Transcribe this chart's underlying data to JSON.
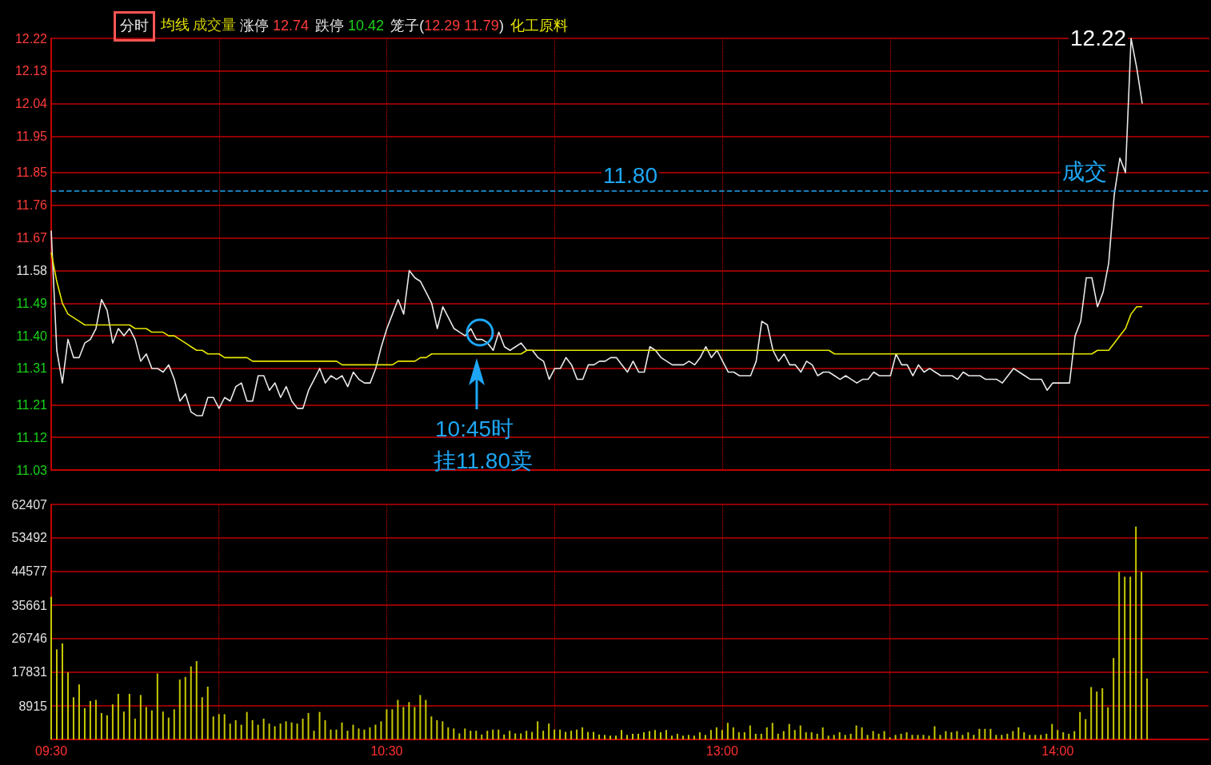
{
  "chart_data": [
    {
      "type": "line",
      "title": "分时",
      "legend": "top left",
      "grid": true,
      "tick_labels": "y",
      "categories": [
        null,
        null,
        null,
        null,
        null,
        null,
        null,
        null,
        null,
        null,
        null,
        null,
        null,
        null,
        null,
        null,
        null,
        null,
        null,
        null,
        null,
        null,
        null,
        null,
        null,
        null,
        null,
        null,
        null,
        null,
        null,
        null,
        null,
        null,
        null,
        null,
        null,
        null,
        null,
        null,
        null,
        null,
        null,
        null,
        null,
        null,
        null,
        null,
        null,
        null,
        null,
        null,
        null,
        null,
        null,
        null,
        null,
        null,
        null,
        null,
        null,
        null,
        null,
        null,
        null,
        null,
        null,
        null,
        null,
        null,
        null,
        null,
        null,
        null,
        null,
        null,
        null,
        null,
        null,
        null,
        null,
        null,
        null,
        null,
        null,
        null,
        null,
        null,
        null,
        null,
        null,
        null,
        null,
        null,
        null,
        null,
        null,
        null,
        null,
        null,
        null,
        null,
        null,
        null,
        null,
        null,
        null,
        null,
        null,
        null,
        null,
        null,
        null,
        null,
        null,
        null,
        null,
        null,
        null,
        null,
        null,
        null,
        null,
        null,
        null,
        null,
        null,
        null,
        null,
        null,
        null,
        null,
        null,
        null,
        null,
        null,
        null,
        null,
        null,
        null,
        null,
        null,
        null,
        null,
        null,
        null,
        null,
        null,
        null,
        null,
        null,
        null,
        null,
        null,
        null,
        null,
        null,
        null,
        null,
        null,
        null,
        null,
        null,
        null,
        null,
        null,
        null,
        null,
        null,
        null,
        null,
        null,
        null,
        null,
        null,
        null,
        null,
        null,
        null,
        null,
        null,
        null,
        null,
        null,
        null,
        null,
        null,
        null,
        null,
        null,
        null,
        null,
        null,
        null,
        null,
        null,
        null,
        null,
        null,
        null,
        null,
        null,
        null,
        null,
        null,
        null,
        null,
        null
      ],
      "ylim": [
        11.03,
        12.22
      ],
      "yticks": [
        11.03,
        11.12,
        11.21,
        11.31,
        {
          "value": 11.4,
          "label": "11.40"
        },
        11.49,
        11.58,
        11.67,
        11.76,
        11.85,
        11.95,
        12.04,
        12.13,
        12.22
      ],
      "series": [
        {
          "color": "#e8e8e8",
          "values": [
            11.69,
            11.36,
            11.27,
            11.39,
            11.34,
            11.34,
            11.38,
            11.39,
            11.42,
            11.5,
            11.47,
            11.38,
            11.42,
            11.4,
            11.42,
            11.39,
            11.33,
            11.35,
            11.31,
            11.31,
            11.3,
            11.32,
            11.28,
            11.22,
            11.24,
            11.19,
            11.18,
            11.18,
            11.23,
            11.23,
            11.2,
            11.23,
            11.22,
            11.26,
            11.27,
            11.22,
            11.22,
            11.29,
            11.29,
            11.25,
            11.27,
            11.23,
            11.26,
            11.22,
            11.2,
            11.2,
            11.25,
            11.28,
            11.31,
            11.27,
            11.29,
            11.28,
            11.29,
            11.26,
            11.3,
            11.28,
            11.27,
            11.27,
            11.31,
            11.37,
            11.42,
            11.46,
            11.5,
            11.46,
            11.58,
            11.56,
            11.55,
            11.52,
            11.49,
            11.42,
            11.48,
            11.45,
            11.42,
            11.41,
            11.4,
            11.42,
            11.39,
            11.39,
            11.38,
            11.36,
            11.41,
            11.37,
            11.36,
            11.37,
            11.38,
            11.36,
            11.36,
            11.34,
            11.33,
            11.28,
            11.31,
            11.31,
            11.34,
            11.32,
            11.28,
            11.28,
            11.32,
            11.32,
            11.33,
            11.33,
            11.34,
            11.34,
            11.32,
            11.3,
            11.33,
            11.3,
            11.3,
            11.37,
            11.36,
            11.34,
            11.33,
            11.32,
            11.32,
            11.32,
            11.33,
            11.32,
            11.34,
            11.37,
            11.34,
            11.36,
            11.33,
            11.3,
            11.3,
            11.29,
            11.29,
            11.29,
            11.33,
            11.44,
            11.43,
            11.36,
            11.33,
            11.35,
            11.32,
            11.32,
            11.3,
            11.33,
            11.32,
            11.29,
            11.3,
            11.3,
            11.29,
            11.28,
            11.29,
            11.28,
            11.27,
            11.28,
            11.28,
            11.3,
            11.29,
            11.29,
            11.29,
            11.35,
            11.32,
            11.32,
            11.29,
            11.32,
            11.3,
            11.31,
            11.3,
            11.29,
            11.29,
            11.29,
            11.28,
            11.3,
            11.29,
            11.29,
            11.29,
            11.28,
            11.28,
            11.28,
            11.27,
            11.29,
            11.31,
            11.3,
            11.29,
            11.28,
            11.28,
            11.28,
            11.25,
            11.27,
            11.27,
            11.27,
            11.27,
            11.4,
            11.44,
            11.56,
            11.56,
            11.48,
            11.52,
            11.6,
            11.79,
            11.89,
            11.85,
            12.22,
            12.14,
            12.04,
            null,
            null,
            null,
            null,
            null,
            null,
            null,
            null,
            null,
            null,
            null,
            null
          ]
        },
        {
          "name": "均线",
          "color": "#e6e600",
          "values": [
            11.63,
            11.55,
            11.49,
            11.46,
            11.45,
            11.44,
            11.43,
            11.43,
            11.43,
            11.43,
            11.43,
            11.43,
            11.43,
            11.43,
            11.43,
            11.42,
            11.42,
            11.42,
            11.41,
            11.41,
            11.41,
            11.4,
            11.4,
            11.39,
            11.38,
            11.37,
            11.36,
            11.36,
            11.35,
            11.35,
            11.35,
            11.34,
            11.34,
            11.34,
            11.34,
            11.34,
            11.33,
            11.33,
            11.33,
            11.33,
            11.33,
            11.33,
            11.33,
            11.33,
            11.33,
            11.33,
            11.33,
            11.33,
            11.33,
            11.33,
            11.33,
            11.33,
            11.32,
            11.32,
            11.32,
            11.32,
            11.32,
            11.32,
            11.32,
            11.32,
            11.32,
            11.32,
            11.33,
            11.33,
            11.33,
            11.33,
            11.34,
            11.34,
            11.35,
            11.35,
            11.35,
            11.35,
            11.35,
            11.35,
            11.35,
            11.35,
            11.35,
            11.35,
            11.35,
            11.35,
            11.35,
            11.35,
            11.35,
            11.35,
            11.35,
            11.36,
            11.36,
            11.36,
            11.36,
            11.36,
            11.36,
            11.36,
            11.36,
            11.36,
            11.36,
            11.36,
            11.36,
            11.36,
            11.36,
            11.36,
            11.36,
            11.36,
            11.36,
            11.36,
            11.36,
            11.36,
            11.36,
            11.36,
            11.36,
            11.36,
            11.36,
            11.36,
            11.36,
            11.36,
            11.36,
            11.36,
            11.36,
            11.36,
            11.36,
            11.36,
            11.36,
            11.36,
            11.36,
            11.36,
            11.36,
            11.36,
            11.36,
            11.36,
            11.36,
            11.36,
            11.36,
            11.36,
            11.36,
            11.36,
            11.36,
            11.36,
            11.36,
            11.36,
            11.36,
            11.36,
            11.35,
            11.35,
            11.35,
            11.35,
            11.35,
            11.35,
            11.35,
            11.35,
            11.35,
            11.35,
            11.35,
            11.35,
            11.35,
            11.35,
            11.35,
            11.35,
            11.35,
            11.35,
            11.35,
            11.35,
            11.35,
            11.35,
            11.35,
            11.35,
            11.35,
            11.35,
            11.35,
            11.35,
            11.35,
            11.35,
            11.35,
            11.35,
            11.35,
            11.35,
            11.35,
            11.35,
            11.35,
            11.35,
            11.35,
            11.35,
            11.35,
            11.35,
            11.35,
            11.35,
            11.35,
            11.35,
            11.35,
            11.36,
            11.36,
            11.36,
            11.38,
            11.4,
            11.42,
            11.46,
            11.48,
            11.48,
            null,
            null,
            null,
            null,
            null,
            null,
            null,
            null,
            null,
            null,
            null,
            null
          ]
        }
      ],
      "ref_lines": [
        {
          "axis": "y",
          "value": 11.8,
          "label": "11.80",
          "color": "#1ea7f5",
          "line_style": "dashed"
        }
      ],
      "annotations": [
        "涨停 12.74",
        "跌停 10.42",
        "笼子(12.29 11.79)",
        "化工原料",
        "12.22",
        "成交",
        "10:45时",
        "挂11.80卖"
      ]
    },
    {
      "type": "bar",
      "legend": "top left",
      "grid": true,
      "categories": [
        "09:30",
        null,
        null,
        null,
        null,
        null,
        null,
        null,
        null,
        null,
        null,
        null,
        null,
        null,
        null,
        null,
        null,
        null,
        null,
        null,
        null,
        null,
        null,
        null,
        null,
        null,
        null,
        null,
        null,
        null,
        null,
        null,
        null,
        null,
        null,
        null,
        null,
        null,
        null,
        null,
        null,
        null,
        null,
        null,
        null,
        null,
        null,
        null,
        null,
        null,
        null,
        null,
        null,
        null,
        null,
        null,
        null,
        null,
        null,
        null,
        "10:30",
        null,
        null,
        null,
        null,
        null,
        null,
        null,
        null,
        null,
        null,
        null,
        null,
        null,
        null,
        null,
        null,
        null,
        null,
        null,
        null,
        null,
        null,
        null,
        null,
        null,
        null,
        null,
        null,
        null,
        null,
        null,
        null,
        null,
        null,
        null,
        null,
        null,
        null,
        null,
        null,
        null,
        null,
        null,
        null,
        null,
        null,
        null,
        null,
        null,
        null,
        null,
        null,
        null,
        null,
        null,
        null,
        null,
        null,
        null,
        "13:00",
        null,
        null,
        null,
        null,
        null,
        null,
        null,
        null,
        null,
        null,
        null,
        null,
        null,
        null,
        null,
        null,
        null,
        null,
        null,
        null,
        null,
        null,
        null,
        null,
        null,
        null,
        null,
        null,
        null,
        null,
        null,
        null,
        null,
        null,
        null,
        null,
        null,
        null,
        null,
        null,
        null,
        null,
        null,
        null,
        null,
        null,
        null,
        null,
        null,
        null,
        null,
        null,
        null,
        null,
        null,
        null,
        null,
        null,
        null,
        "14:00",
        null,
        null,
        null,
        null,
        null,
        null,
        null,
        null,
        null,
        null,
        null,
        null,
        null,
        null,
        null,
        null,
        null,
        null,
        null,
        null,
        null,
        null,
        null,
        null,
        null,
        null,
        null
      ],
      "ylim": [
        0,
        62407
      ],
      "yticks": [
        {
          "value": 0,
          "label": null
        },
        8915,
        17831,
        26746,
        35661,
        44577,
        53492,
        62407
      ],
      "series": [
        {
          "name": "成交量",
          "color": "#c8c800",
          "values": [
            37900,
            23900,
            25500,
            17800,
            11200,
            14600,
            8300,
            10200,
            10500,
            7000,
            6400,
            9300,
            12100,
            7400,
            12100,
            5500,
            11800,
            8600,
            7700,
            17500,
            7400,
            5800,
            8000,
            15900,
            16600,
            19400,
            20800,
            11200,
            14000,
            6100,
            6700,
            6700,
            4200,
            5100,
            3900,
            7300,
            5100,
            3900,
            5500,
            4200,
            3500,
            4200,
            4800,
            4500,
            4200,
            5500,
            7000,
            2300,
            7300,
            5100,
            2600,
            2600,
            4500,
            2300,
            3900,
            2900,
            2600,
            3200,
            3900,
            4800,
            8000,
            8000,
            10500,
            8600,
            9900,
            8600,
            11800,
            10500,
            6100,
            5100,
            4800,
            3200,
            2900,
            1600,
            2900,
            2300,
            2300,
            1300,
            2300,
            2600,
            2600,
            1300,
            2300,
            1600,
            1600,
            2300,
            2000,
            4800,
            2300,
            4200,
            2600,
            2600,
            2000,
            2300,
            2600,
            3200,
            2000,
            2000,
            1300,
            1200,
            1000,
            1000,
            2500,
            1200,
            1500,
            1500,
            1900,
            2200,
            2500,
            1900,
            2500,
            1000,
            1500,
            1000,
            1200,
            1000,
            1900,
            1200,
            2500,
            3200,
            2500,
            4400,
            3200,
            1900,
            1900,
            3700,
            1500,
            1500,
            3200,
            4400,
            1500,
            2200,
            4100,
            2500,
            3700,
            1900,
            1900,
            1500,
            3200,
            1000,
            1200,
            1900,
            1200,
            1500,
            3700,
            3200,
            1200,
            2200,
            1500,
            2200,
            600,
            1200,
            1500,
            1900,
            1200,
            1200,
            1200,
            1000,
            3500,
            1200,
            2200,
            1900,
            2200,
            1200,
            1900,
            1200,
            2800,
            2800,
            2800,
            1200,
            1200,
            1500,
            2200,
            3200,
            1900,
            1200,
            1200,
            1200,
            1500,
            4100,
            2500,
            1900,
            1500,
            2200,
            7300,
            5400,
            13900,
            12700,
            13600,
            8500,
            21600,
            44500,
            43200,
            43200,
            56500,
            44500,
            16200,
            null,
            null,
            null,
            null,
            null,
            null,
            null,
            null,
            null,
            null,
            null
          ]
        }
      ]
    }
  ]
}
